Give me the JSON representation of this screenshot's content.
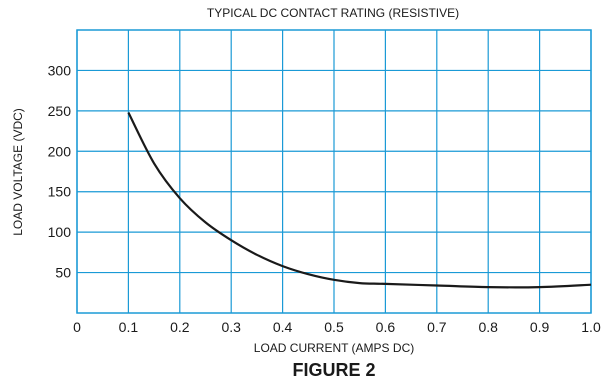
{
  "chart_data": {
    "type": "line",
    "title": "TYPICAL DC CONTACT RATING (RESISTIVE)",
    "xlabel": "LOAD CURRENT (AMPS DC)",
    "ylabel": "LOAD VOLTAGE (VDC)",
    "caption": "FIGURE 2",
    "xlim": [
      0,
      1.0
    ],
    "ylim": [
      0,
      350
    ],
    "x_ticks": [
      "0",
      "0.1",
      "0.2",
      "0.3",
      "0.4",
      "0.5",
      "0.6",
      "0.7",
      "0.8",
      "0.9",
      "1.0"
    ],
    "y_ticks": [
      "50",
      "100",
      "150",
      "200",
      "250",
      "300"
    ],
    "grid": true,
    "plot_background": "#ffffff",
    "grid_color": "#1a9ad6",
    "line_color": "#1a1a1a",
    "series": [
      {
        "x": [
          0.1,
          0.15,
          0.2,
          0.25,
          0.3,
          0.35,
          0.4,
          0.45,
          0.5,
          0.55,
          0.6,
          0.7,
          0.8,
          0.9,
          1.0
        ],
        "y": [
          248,
          185,
          142,
          112,
          90,
          72,
          58,
          48,
          41,
          37,
          36,
          34,
          32,
          32,
          35
        ]
      }
    ]
  }
}
